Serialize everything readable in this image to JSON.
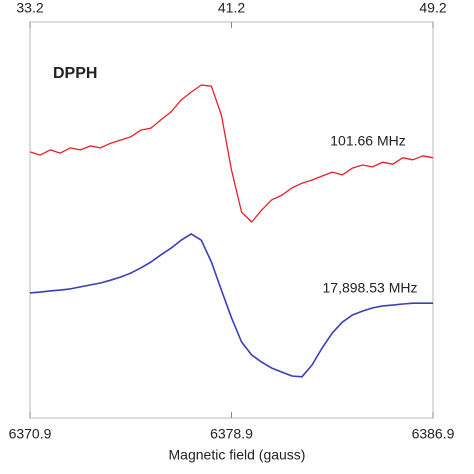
{
  "chart_data": {
    "type": "line",
    "title": "DPPH",
    "xlabel": "Magnetic field (gauss)",
    "x": [
      6370.9,
      6371.3,
      6371.7,
      6372.1,
      6372.5,
      6372.9,
      6373.3,
      6373.7,
      6374.1,
      6374.5,
      6374.9,
      6375.3,
      6375.7,
      6376.1,
      6376.5,
      6376.9,
      6377.3,
      6377.7,
      6378.1,
      6378.5,
      6378.9,
      6379.3,
      6379.7,
      6380.1,
      6380.5,
      6380.9,
      6381.3,
      6381.7,
      6382.1,
      6382.5,
      6382.9,
      6383.3,
      6383.7,
      6384.1,
      6384.5,
      6384.9,
      6385.3,
      6385.7,
      6386.1,
      6386.5,
      6386.9
    ],
    "series": [
      {
        "name": "101.66 MHz",
        "color": "#e8202a",
        "values": [
          67.2,
          66.4,
          67.7,
          66.9,
          68.2,
          67.7,
          68.7,
          68.2,
          69.4,
          70.2,
          71.0,
          72.7,
          73.2,
          75.3,
          77.3,
          80.3,
          82.3,
          84.1,
          83.8,
          76.5,
          62.6,
          52.0,
          49.5,
          52.5,
          55.1,
          56.3,
          58.1,
          59.3,
          60.1,
          61.1,
          62.1,
          61.4,
          63.1,
          63.9,
          63.4,
          64.6,
          64.1,
          65.7,
          65.2,
          66.2,
          65.7
        ]
      },
      {
        "name": "17,898.53 MHz",
        "color": "#3a3fb8",
        "values": [
          31.6,
          31.8,
          32.1,
          32.3,
          32.6,
          33.1,
          33.6,
          34.1,
          34.8,
          35.6,
          36.6,
          37.9,
          39.4,
          41.2,
          42.9,
          44.9,
          46.5,
          44.9,
          39.4,
          32.3,
          25.3,
          19.2,
          15.9,
          14.1,
          12.6,
          11.6,
          10.6,
          10.4,
          13.4,
          17.7,
          21.5,
          24.2,
          26.0,
          27.0,
          27.8,
          28.3,
          28.5,
          28.8,
          29.0,
          29.0,
          29.0
        ]
      }
    ],
    "xlim": [
      6370.9,
      6386.9
    ],
    "xticks": [
      6370.9,
      6378.9,
      6386.9
    ],
    "x2lim": [
      33.2,
      49.2
    ],
    "x2ticks": [
      33.2,
      41.2,
      49.2
    ],
    "ylim": [
      0,
      100
    ]
  }
}
